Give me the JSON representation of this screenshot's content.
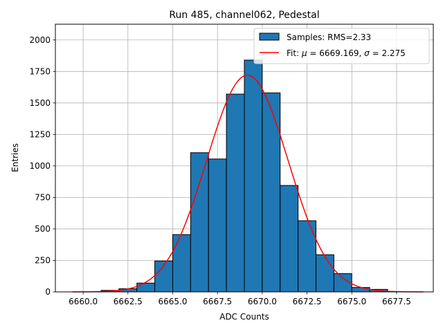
{
  "chart_data": {
    "type": "bar",
    "title": "Run 485, channel062, Pedestal",
    "xlabel": "ADC Counts",
    "ylabel": "Entries",
    "xlim": [
      6658.45,
      6679.55
    ],
    "ylim": [
      0,
      2125
    ],
    "xticks": [
      6660.0,
      6662.5,
      6665.0,
      6667.5,
      6670.0,
      6672.5,
      6675.0,
      6677.5
    ],
    "xtick_labels": [
      "6660.0",
      "6662.5",
      "6665.0",
      "6667.5",
      "6670.0",
      "6672.5",
      "6675.0",
      "6677.5"
    ],
    "yticks": [
      0,
      250,
      500,
      750,
      1000,
      1250,
      1500,
      1750,
      2000
    ],
    "ytick_labels": [
      "0",
      "250",
      "500",
      "750",
      "1000",
      "1250",
      "1500",
      "1750",
      "2000"
    ],
    "grid": true,
    "legend_position": "top-right",
    "bars": {
      "name": "Samples: RMS=2.33",
      "color": "#1f77b4",
      "edgecolor": "#000000",
      "edges": [
        6661,
        6662,
        6663,
        6664,
        6665,
        6666,
        6667,
        6668,
        6669,
        6670,
        6671,
        6672,
        6673,
        6674,
        6675,
        6676,
        6677
      ],
      "values": [
        12,
        25,
        70,
        245,
        455,
        1105,
        1055,
        1570,
        1840,
        1580,
        845,
        565,
        295,
        145,
        35,
        20
      ]
    },
    "fit": {
      "name": "Fit: μ = 6669.169, σ = 2.275",
      "legend_prefix": "Fit: ",
      "mu_label": "μ",
      "mu_text": " = 6669.169, ",
      "sigma_label": "σ",
      "sigma_text": " = 2.275",
      "color": "#ff0000",
      "mu": 6669.169,
      "sigma": 2.275,
      "amplitude": 1720,
      "x_range": [
        6659.4,
        6679.0
      ]
    }
  }
}
